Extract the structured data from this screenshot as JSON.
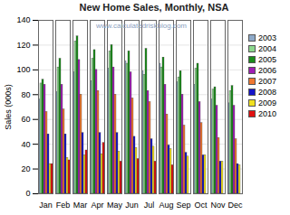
{
  "chart_data": {
    "type": "bar",
    "title": "New Home Sales, Monthly, NSA",
    "y_label": "Sales (000s)",
    "annotations": [
      "www.calculatedriskblog.com"
    ],
    "categories": [
      "Jan",
      "Feb",
      "Mar",
      "Apr",
      "May",
      "Jun",
      "Jul",
      "Aug",
      "Sep",
      "Oct",
      "Nov",
      "Dec"
    ],
    "series": [
      {
        "name": "2003",
        "color": "#8ea9c8",
        "values": [
          76,
          82,
          98,
          91,
          101,
          107,
          99,
          105,
          90,
          88,
          76,
          73
        ]
      },
      {
        "name": "2004",
        "color": "#8dd88d",
        "values": [
          89,
          102,
          123,
          109,
          115,
          105,
          96,
          102,
          94,
          101,
          84,
          83
        ]
      },
      {
        "name": "2005",
        "color": "#1b8c1b",
        "values": [
          92,
          109,
          127,
          116,
          120,
          115,
          117,
          110,
          99,
          105,
          86,
          87
        ]
      },
      {
        "name": "2006",
        "color": "#a01eb4",
        "values": [
          88,
          88,
          108,
          100,
          102,
          98,
          83,
          88,
          80,
          74,
          71,
          71
        ]
      },
      {
        "name": "2007",
        "color": "#f07830",
        "values": [
          66,
          68,
          80,
          83,
          80,
          77,
          74,
          64,
          55,
          57,
          45,
          44
        ]
      },
      {
        "name": "2008",
        "color": "#1414c8",
        "values": [
          48,
          48,
          49,
          49,
          49,
          46,
          44,
          39,
          33,
          31,
          26,
          24
        ]
      },
      {
        "name": "2009",
        "color": "#f0e020",
        "values": [
          24,
          29,
          31,
          32,
          34,
          37,
          38,
          36,
          30,
          31,
          26,
          23
        ]
      },
      {
        "name": "2010",
        "color": "#e01010",
        "values": [
          24,
          27,
          35,
          41,
          26,
          28,
          26,
          23,
          null,
          null,
          null,
          null
        ]
      }
    ],
    "ylim": [
      0,
      140
    ],
    "yticks": [
      0,
      20,
      40,
      60,
      80,
      100,
      120,
      140
    ],
    "grid": true,
    "legend": "right"
  }
}
